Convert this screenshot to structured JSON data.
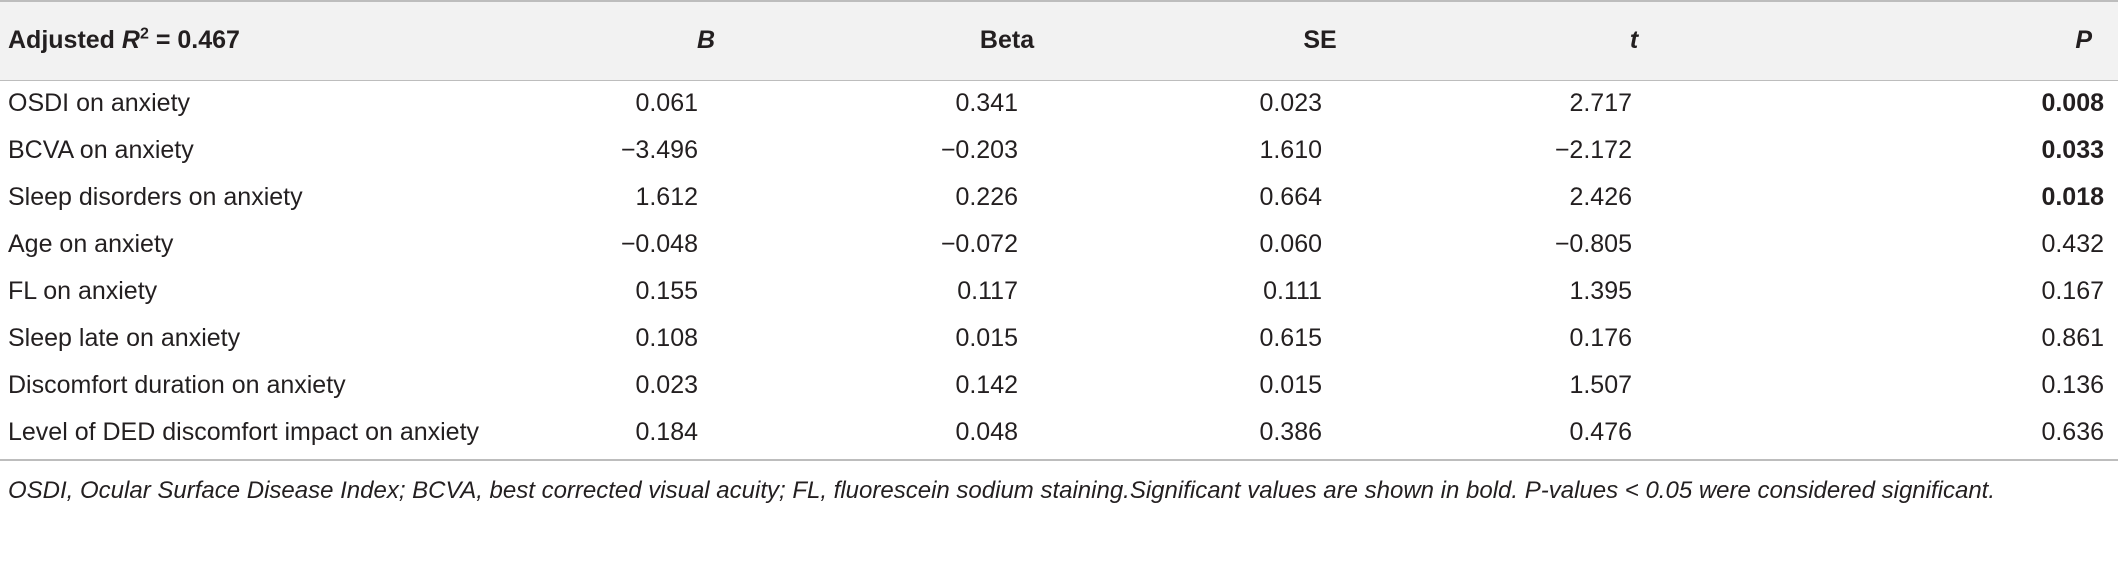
{
  "table": {
    "header": {
      "model_label_prefix": "Adjusted ",
      "model_label_symbol": "R",
      "model_label_sup": "2",
      "model_label_suffix": " = 0.467",
      "columns": [
        "B",
        "Beta",
        "SE",
        "t",
        "P"
      ]
    },
    "rows": [
      {
        "label": "OSDI on anxiety",
        "B": "0.061",
        "Beta": "0.341",
        "SE": "0.023",
        "t": "2.717",
        "P": "0.008",
        "P_significant": true
      },
      {
        "label": "BCVA on anxiety",
        "B": "−3.496",
        "Beta": "−0.203",
        "SE": "1.610",
        "t": "−2.172",
        "P": "0.033",
        "P_significant": true
      },
      {
        "label": "Sleep disorders on anxiety",
        "B": "1.612",
        "Beta": "0.226",
        "SE": "0.664",
        "t": "2.426",
        "P": "0.018",
        "P_significant": true
      },
      {
        "label": "Age on anxiety",
        "B": "−0.048",
        "Beta": "−0.072",
        "SE": "0.060",
        "t": "−0.805",
        "P": "0.432",
        "P_significant": false
      },
      {
        "label": "FL on anxiety",
        "B": "0.155",
        "Beta": "0.117",
        "SE": "0.111",
        "t": "1.395",
        "P": "0.167",
        "P_significant": false
      },
      {
        "label": "Sleep late on anxiety",
        "B": "0.108",
        "Beta": "0.015",
        "SE": "0.615",
        "t": "0.176",
        "P": "0.861",
        "P_significant": false
      },
      {
        "label": "Discomfort duration on anxiety",
        "B": "0.023",
        "Beta": "0.142",
        "SE": "0.015",
        "t": "1.507",
        "P": "0.136",
        "P_significant": false
      },
      {
        "label": "Level of DED discomfort impact on anxiety",
        "B": "0.184",
        "Beta": "0.048",
        "SE": "0.386",
        "t": "0.476",
        "P": "0.636",
        "P_significant": false
      }
    ],
    "footnote": "OSDI, Ocular Surface Disease Index; BCVA, best corrected visual acuity; FL, fluorescein sodium staining.Significant values are shown in bold. P-values < 0.05 were considered significant."
  }
}
